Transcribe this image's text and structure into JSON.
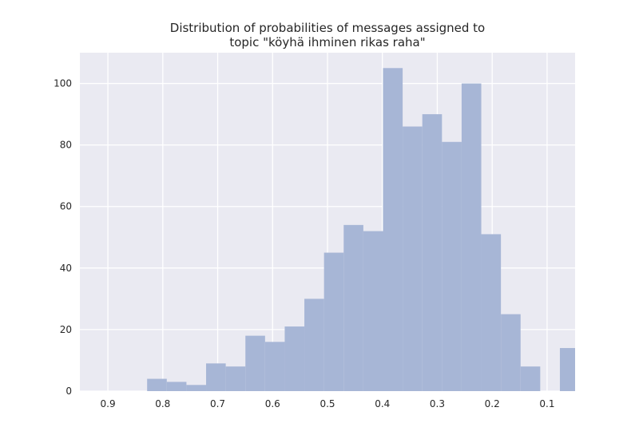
{
  "chart_data": {
    "type": "bar",
    "title": "Distribution of probabilities of messages assigned to\ntopic \"köyhä ihminen rikas raha\"",
    "title_lines": [
      "Distribution of probabilities of messages assigned to",
      "topic \"köyhä ihminen rikas raha\""
    ],
    "xlabel": "",
    "ylabel": "",
    "x_axis_inverted": true,
    "xlim": [
      0.951,
      0.049
    ],
    "ylim": [
      0,
      110
    ],
    "xticks": [
      0.9,
      0.8,
      0.7,
      0.6,
      0.5,
      0.4,
      0.3,
      0.2,
      0.1
    ],
    "xtick_labels": [
      "0.9",
      "0.8",
      "0.7",
      "0.6",
      "0.5",
      "0.4",
      "0.3",
      "0.2",
      "0.1"
    ],
    "yticks": [
      0,
      20,
      40,
      60,
      80,
      100
    ],
    "ytick_labels": [
      "0",
      "20",
      "40",
      "60",
      "80",
      "100"
    ],
    "bin_width": 0.0358,
    "bin_edges": [
      0.8285,
      0.7927,
      0.7569,
      0.7211,
      0.6853,
      0.6495,
      0.6137,
      0.5779,
      0.5421,
      0.5063,
      0.4705,
      0.4347,
      0.3989,
      0.3631,
      0.3273,
      0.2915,
      0.2557,
      0.2199,
      0.1841,
      0.1483,
      0.1125,
      0.0767,
      0.0409
    ],
    "counts": [
      4,
      3,
      2,
      9,
      8,
      18,
      16,
      21,
      30,
      45,
      54,
      52,
      105,
      86,
      90,
      81,
      100,
      51,
      25,
      8,
      0,
      14
    ],
    "bar_color": "#a7b6d6",
    "plot_background": "#eaeaf2",
    "grid": true,
    "grid_color": "#ffffff",
    "legend": "none"
  }
}
